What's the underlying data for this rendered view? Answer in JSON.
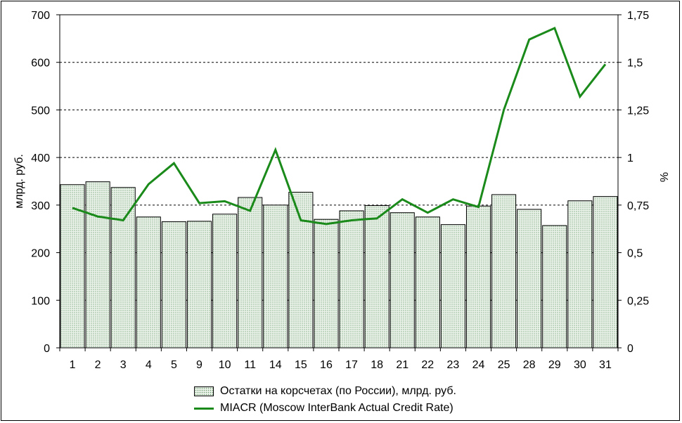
{
  "chart_data": {
    "type": "bar",
    "categories": [
      "1",
      "2",
      "3",
      "4",
      "5",
      "9",
      "10",
      "11",
      "14",
      "15",
      "16",
      "17",
      "18",
      "21",
      "22",
      "23",
      "24",
      "25",
      "28",
      "29",
      "30",
      "31"
    ],
    "series": [
      {
        "name": "Остатки на корсчетах (по России), млрд. руб.",
        "type": "bar",
        "axis": "left",
        "values": [
          343,
          349,
          337,
          275,
          265,
          266,
          281,
          316,
          300,
          327,
          270,
          288,
          299,
          284,
          275,
          259,
          298,
          322,
          291,
          257,
          309,
          318
        ]
      },
      {
        "name": "MIACR (Moscow InterBank Actual Credit Rate)",
        "type": "line",
        "axis": "right",
        "values": [
          0.735,
          0.69,
          0.67,
          0.86,
          0.97,
          0.76,
          0.77,
          0.72,
          1.04,
          0.67,
          0.65,
          0.67,
          0.68,
          0.78,
          0.71,
          0.78,
          0.74,
          1.25,
          1.62,
          1.68,
          1.32,
          1.49
        ]
      }
    ],
    "ylabel": "млрд. руб.",
    "ylabel_right": "%",
    "ylim": [
      0,
      700
    ],
    "ylim_right": [
      0,
      1.75
    ],
    "yticks": [
      "0",
      "100",
      "200",
      "300",
      "400",
      "500",
      "600",
      "700"
    ],
    "yticks_right": [
      "0",
      "0,25",
      "0,5",
      "0,75",
      "1",
      "1,25",
      "1,5",
      "1,75"
    ],
    "grid": "horizontal dashed",
    "legend_position": "bottom",
    "colors": {
      "bar_fill": "#eaf2ea",
      "bar_dots": "#6a9a6a",
      "line": "#1a8a1a"
    }
  }
}
